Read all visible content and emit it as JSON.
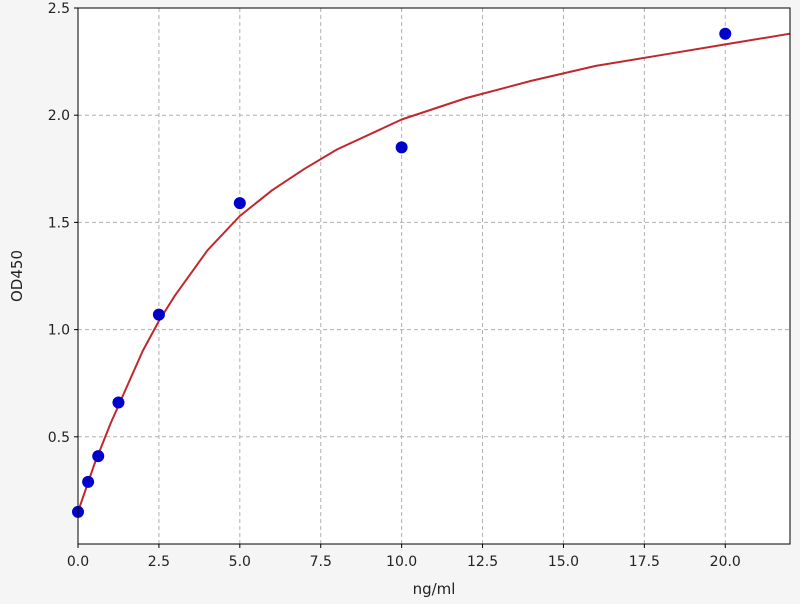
{
  "chart_data": {
    "type": "scatter",
    "title": "",
    "xlabel": "ng/ml",
    "ylabel": "OD450",
    "xlim": [
      0,
      22
    ],
    "ylim": [
      0,
      2.5
    ],
    "grid": true,
    "xticks": [
      0.0,
      2.5,
      5.0,
      7.5,
      10.0,
      12.5,
      15.0,
      17.5,
      20.0
    ],
    "xtick_labels": [
      "0.0",
      "2.5",
      "5.0",
      "7.5",
      "10.0",
      "12.5",
      "15.0",
      "17.5",
      "20.0"
    ],
    "yticks": [
      0.5,
      1.0,
      1.5,
      2.0,
      2.5
    ],
    "ytick_labels": [
      "0.5",
      "1.0",
      "1.5",
      "2.0",
      "2.5"
    ],
    "series": [
      {
        "kind": "points",
        "color": "#0000cc",
        "x": [
          0,
          0.3125,
          0.625,
          1.25,
          2.5,
          5,
          10,
          20
        ],
        "y": [
          0.15,
          0.29,
          0.41,
          0.66,
          1.07,
          1.59,
          1.85,
          2.38
        ]
      },
      {
        "kind": "fit-curve",
        "color": "#c0282d",
        "x": [
          0,
          0.5,
          1,
          1.5,
          2,
          2.5,
          3,
          4,
          5,
          6,
          7,
          8,
          10,
          12,
          14,
          16,
          18,
          20,
          22
        ],
        "y": [
          0.15,
          0.37,
          0.56,
          0.73,
          0.9,
          1.04,
          1.16,
          1.37,
          1.53,
          1.65,
          1.75,
          1.84,
          1.98,
          2.08,
          2.16,
          2.23,
          2.28,
          2.33,
          2.38
        ]
      }
    ]
  }
}
